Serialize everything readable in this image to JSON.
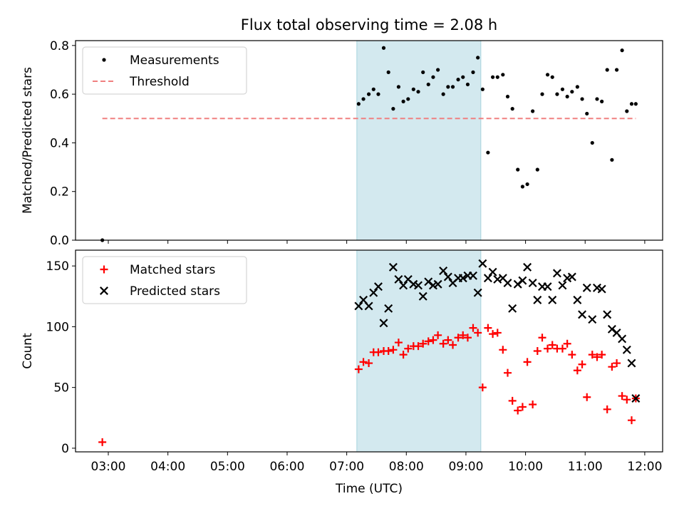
{
  "chart_data": {
    "title": "Flux total observing time = 2.08 h",
    "xlabel": "Time (UTC)",
    "xlim": [
      2.45,
      12.3
    ],
    "xticks": [
      {
        "v": 3,
        "label": "03:00"
      },
      {
        "v": 4,
        "label": "04:00"
      },
      {
        "v": 5,
        "label": "05:00"
      },
      {
        "v": 6,
        "label": "06:00"
      },
      {
        "v": 7,
        "label": "07:00"
      },
      {
        "v": 8,
        "label": "08:00"
      },
      {
        "v": 9,
        "label": "09:00"
      },
      {
        "v": 10,
        "label": "10:00"
      },
      {
        "v": 11,
        "label": "11:00"
      },
      {
        "v": 12,
        "label": "12:00"
      }
    ],
    "shaded_interval": {
      "x0": 7.17,
      "x1": 9.25,
      "color": "#d3e9ef",
      "edge": "#a6d3dd"
    },
    "panels": [
      {
        "type": "scatter",
        "ylabel": "Matched/Predicted stars",
        "ylim": [
          0,
          0.82
        ],
        "yticks": [
          {
            "v": 0,
            "label": "0.0"
          },
          {
            "v": 0.2,
            "label": "0.2"
          },
          {
            "v": 0.4,
            "label": "0.4"
          },
          {
            "v": 0.6,
            "label": "0.6"
          },
          {
            "v": 0.8,
            "label": "0.8"
          }
        ],
        "legend": {
          "placement": "upper left",
          "entries": [
            {
              "label": "Measurements",
              "marker": "dot",
              "color": "#000000"
            },
            {
              "label": "Threshold",
              "marker": "dash",
              "color": "#f08080"
            }
          ]
        },
        "threshold": {
          "y": 0.5,
          "x0": 2.9,
          "x1": 11.85,
          "color": "#f08080"
        },
        "series": [
          {
            "name": "Measurements",
            "marker": "dot",
            "color": "#000000",
            "x": [
              2.9,
              7.2,
              7.28,
              7.37,
              7.45,
              7.53,
              7.62,
              7.7,
              7.78,
              7.87,
              7.95,
              8.03,
              8.12,
              8.2,
              8.28,
              8.37,
              8.45,
              8.53,
              8.62,
              8.7,
              8.78,
              8.87,
              8.95,
              9.03,
              9.12,
              9.2,
              9.28,
              9.37,
              9.45,
              9.53,
              9.62,
              9.7,
              9.78,
              9.87,
              9.95,
              10.03,
              10.12,
              10.2,
              10.28,
              10.37,
              10.45,
              10.53,
              10.62,
              10.7,
              10.78,
              10.87,
              10.95,
              11.03,
              11.12,
              11.2,
              11.28,
              11.37,
              11.45,
              11.53,
              11.62,
              11.7,
              11.78,
              11.85
            ],
            "y": [
              0.0,
              0.56,
              0.58,
              0.6,
              0.62,
              0.6,
              0.79,
              0.69,
              0.54,
              0.63,
              0.57,
              0.58,
              0.62,
              0.61,
              0.69,
              0.64,
              0.67,
              0.7,
              0.6,
              0.63,
              0.63,
              0.66,
              0.67,
              0.64,
              0.69,
              0.75,
              0.62,
              0.36,
              0.67,
              0.67,
              0.68,
              0.59,
              0.54,
              0.29,
              0.22,
              0.23,
              0.53,
              0.29,
              0.6,
              0.68,
              0.67,
              0.6,
              0.62,
              0.59,
              0.61,
              0.63,
              0.58,
              0.52,
              0.4,
              0.58,
              0.57,
              0.7,
              0.33,
              0.7,
              0.78,
              0.53,
              0.56,
              0.56
            ]
          }
        ]
      },
      {
        "type": "scatter",
        "ylabel": "Count",
        "ylim": [
          -3,
          163
        ],
        "yticks": [
          {
            "v": 0,
            "label": "0"
          },
          {
            "v": 50,
            "label": "50"
          },
          {
            "v": 100,
            "label": "100"
          },
          {
            "v": 150,
            "label": "150"
          }
        ],
        "legend": {
          "placement": "upper left",
          "entries": [
            {
              "label": "Matched stars",
              "marker": "plus",
              "color": "#ff0000"
            },
            {
              "label": "Predicted stars",
              "marker": "x",
              "color": "#000000"
            }
          ]
        },
        "series": [
          {
            "name": "Matched stars",
            "marker": "plus",
            "color": "#ff0000",
            "x": [
              2.9,
              7.2,
              7.28,
              7.37,
              7.45,
              7.53,
              7.62,
              7.7,
              7.78,
              7.87,
              7.95,
              8.03,
              8.12,
              8.2,
              8.28,
              8.37,
              8.45,
              8.53,
              8.62,
              8.7,
              8.78,
              8.87,
              8.95,
              9.03,
              9.12,
              9.2,
              9.28,
              9.37,
              9.45,
              9.53,
              9.62,
              9.7,
              9.78,
              9.87,
              9.95,
              10.03,
              10.12,
              10.2,
              10.28,
              10.37,
              10.45,
              10.53,
              10.62,
              10.7,
              10.78,
              10.87,
              10.95,
              11.03,
              11.12,
              11.2,
              11.28,
              11.37,
              11.45,
              11.53,
              11.62,
              11.7,
              11.78,
              11.85
            ],
            "y": [
              5,
              65,
              71,
              70,
              79,
              79,
              80,
              80,
              81,
              87,
              77,
              82,
              84,
              84,
              86,
              88,
              89,
              93,
              86,
              89,
              85,
              91,
              93,
              91,
              99,
              95,
              50,
              99,
              94,
              95,
              81,
              62,
              39,
              31,
              34,
              71,
              36,
              80,
              91,
              82,
              85,
              82,
              82,
              86,
              77,
              64,
              69,
              42,
              77,
              75,
              77,
              32,
              67,
              70,
              43,
              40,
              23,
              41
            ]
          },
          {
            "name": "Predicted stars",
            "marker": "x",
            "color": "#000000",
            "x": [
              7.2,
              7.28,
              7.37,
              7.45,
              7.53,
              7.62,
              7.7,
              7.78,
              7.87,
              7.95,
              8.03,
              8.12,
              8.2,
              8.28,
              8.37,
              8.45,
              8.53,
              8.62,
              8.7,
              8.78,
              8.87,
              8.95,
              9.03,
              9.12,
              9.2,
              9.28,
              9.37,
              9.45,
              9.53,
              9.62,
              9.7,
              9.78,
              9.87,
              9.95,
              10.03,
              10.12,
              10.2,
              10.28,
              10.37,
              10.45,
              10.53,
              10.62,
              10.7,
              10.78,
              10.87,
              10.95,
              11.03,
              11.12,
              11.2,
              11.28,
              11.37,
              11.45,
              11.53,
              11.62,
              11.7,
              11.78,
              11.85
            ],
            "y": [
              117,
              122,
              117,
              128,
              133,
              103,
              115,
              149,
              139,
              134,
              139,
              135,
              134,
              125,
              137,
              134,
              135,
              146,
              141,
              136,
              140,
              140,
              142,
              142,
              128,
              152,
              140,
              145,
              139,
              140,
              136,
              115,
              135,
              138,
              149,
              136,
              122,
              133,
              133,
              122,
              144,
              134,
              140,
              141,
              122,
              110,
              132,
              106,
              132,
              131,
              110,
              98,
              95,
              90,
              81,
              70,
              41
            ]
          }
        ]
      }
    ]
  }
}
